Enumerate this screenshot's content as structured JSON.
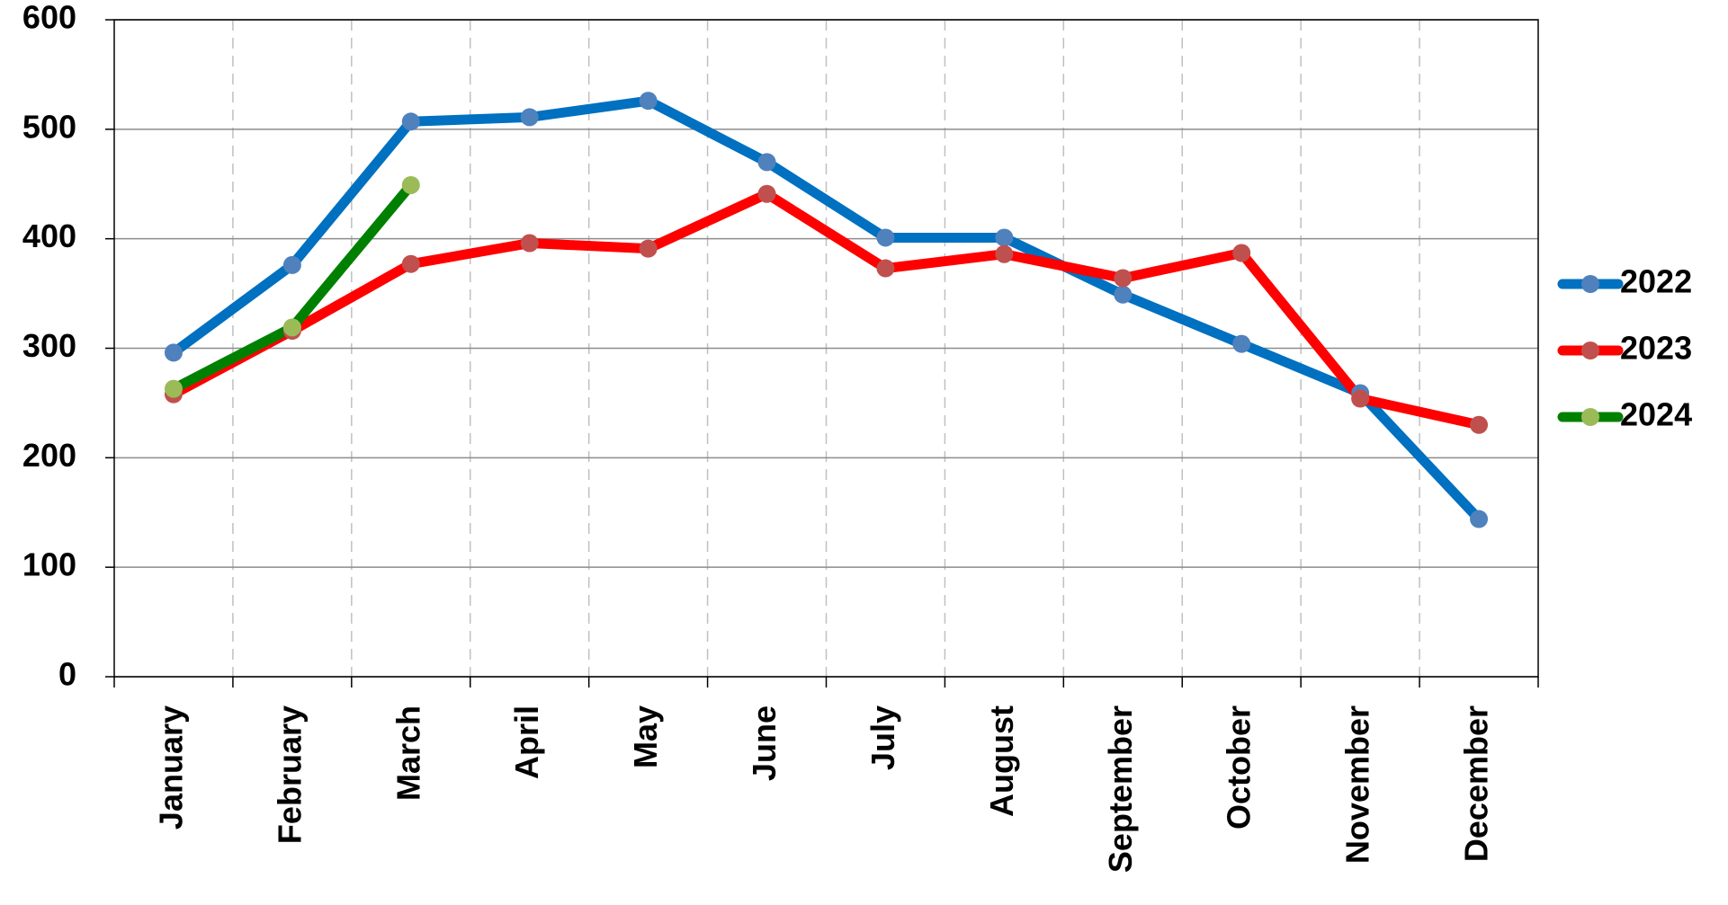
{
  "chart_data": {
    "type": "line",
    "categories": [
      "January",
      "February",
      "March",
      "April",
      "May",
      "June",
      "July",
      "August",
      "September",
      "October",
      "November",
      "December"
    ],
    "series": [
      {
        "name": "2022",
        "color": "#0070c0",
        "marker_color": "#4f81bd",
        "values": [
          296,
          376,
          507,
          511,
          526,
          470,
          401,
          401,
          349,
          304,
          259,
          144
        ]
      },
      {
        "name": "2023",
        "color": "#ff0000",
        "marker_color": "#c0504d",
        "values": [
          258,
          316,
          377,
          396,
          391,
          441,
          373,
          386,
          364,
          387,
          254,
          230
        ]
      },
      {
        "name": "2024",
        "color": "#008000",
        "marker_color": "#9bbb59",
        "values": [
          263,
          319,
          449,
          null,
          null,
          null,
          null,
          null,
          null,
          null,
          null,
          null
        ]
      }
    ],
    "ylim": [
      0,
      600
    ],
    "yticks": [
      0,
      100,
      200,
      300,
      400,
      500,
      600
    ],
    "grid": true,
    "legend": "right"
  }
}
